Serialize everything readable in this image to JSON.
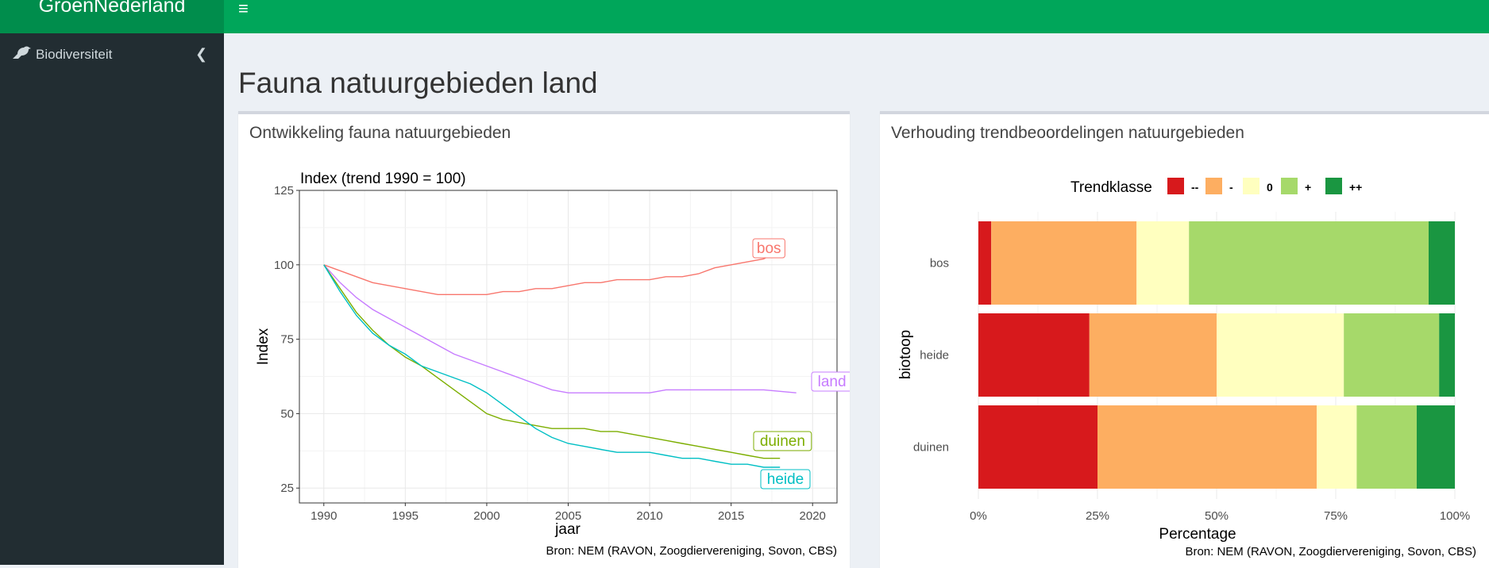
{
  "app": {
    "brand": "GroenNederland",
    "menu_icon": "hamburger-icon"
  },
  "sidebar": {
    "items": [
      {
        "label": "Biodiversiteit",
        "icon": "bird-icon"
      }
    ]
  },
  "page": {
    "title": "Fauna natuurgebieden land"
  },
  "panels": {
    "left": {
      "title": "Ontwikkeling fauna natuurgebieden",
      "source": "Bron: NEM (RAVON, Zoogdiervereniging, Sovon, CBS)"
    },
    "right": {
      "title": "Verhouding trendbeoordelingen natuurgebieden",
      "source": "Bron: NEM (RAVON, Zoogdiervereniging, Sovon, CBS)"
    }
  },
  "chart_data": [
    {
      "type": "line",
      "title": "Index (trend 1990 = 100)",
      "xlabel": "jaar",
      "ylabel": "Index",
      "xlim": [
        1988.5,
        2021.5
      ],
      "ylim": [
        20,
        125
      ],
      "xticks": [
        1990,
        1995,
        2000,
        2005,
        2010,
        2015,
        2020
      ],
      "yticks": [
        25,
        50,
        75,
        100,
        125
      ],
      "grid": true,
      "x": [
        1990,
        1991,
        1992,
        1993,
        1994,
        1995,
        1996,
        1997,
        1998,
        1999,
        2000,
        2001,
        2002,
        2003,
        2004,
        2005,
        2006,
        2007,
        2008,
        2009,
        2010,
        2011,
        2012,
        2013,
        2014,
        2015,
        2016,
        2017,
        2018,
        2019
      ],
      "series": [
        {
          "name": "bos",
          "color": "#f8766d",
          "values": [
            100,
            98,
            96,
            94,
            93,
            92,
            91,
            90,
            90,
            90,
            90,
            91,
            91,
            92,
            92,
            93,
            94,
            94,
            95,
            95,
            95,
            96,
            96,
            97,
            99,
            100,
            101,
            102,
            105,
            null
          ]
        },
        {
          "name": "land",
          "color": "#c77cff",
          "values": [
            100,
            94,
            89,
            85,
            82,
            79,
            76,
            73,
            70,
            68,
            66,
            64,
            62,
            60,
            58,
            57,
            57,
            57,
            57,
            57,
            57,
            58,
            58,
            58,
            58,
            58,
            58,
            58,
            57.5,
            57
          ]
        },
        {
          "name": "duinen",
          "color": "#7cae00",
          "values": [
            100,
            92,
            84,
            78,
            73,
            69,
            66,
            62,
            58,
            54,
            50,
            48,
            47,
            46,
            45,
            45,
            45,
            44,
            44,
            43,
            42,
            41,
            40,
            39,
            38,
            37,
            36,
            35,
            35,
            null
          ]
        },
        {
          "name": "heide",
          "color": "#00bfc4",
          "values": [
            100,
            91,
            83,
            77,
            73,
            70,
            66,
            64,
            62,
            60,
            57,
            53,
            49,
            45,
            42,
            40,
            39,
            38,
            37,
            37,
            37,
            36,
            35,
            35,
            34,
            33,
            33,
            32,
            32,
            null
          ]
        }
      ]
    },
    {
      "type": "bar",
      "orientation": "horizontal",
      "stacked": true,
      "xlabel": "Percentage",
      "ylabel": "biotoop",
      "xlim": [
        0,
        100
      ],
      "xticks": [
        "0%",
        "25%",
        "50%",
        "75%",
        "100%"
      ],
      "legend": {
        "title": "Trendklasse",
        "placement": "top"
      },
      "categories": [
        "bos",
        "heide",
        "duinen"
      ],
      "series": [
        {
          "name": "--",
          "color": "#d7191c",
          "values": [
            2.7,
            23.3,
            25.0
          ]
        },
        {
          "name": "-",
          "color": "#fdae61",
          "values": [
            30.5,
            26.7,
            46.0
          ]
        },
        {
          "name": "0",
          "color": "#ffffbf",
          "values": [
            11.0,
            26.7,
            8.4
          ]
        },
        {
          "name": "+",
          "color": "#a6d96a",
          "values": [
            50.3,
            20.0,
            12.6
          ]
        },
        {
          "name": "++",
          "color": "#1a9641",
          "values": [
            5.5,
            3.3,
            8.0
          ]
        }
      ]
    }
  ]
}
